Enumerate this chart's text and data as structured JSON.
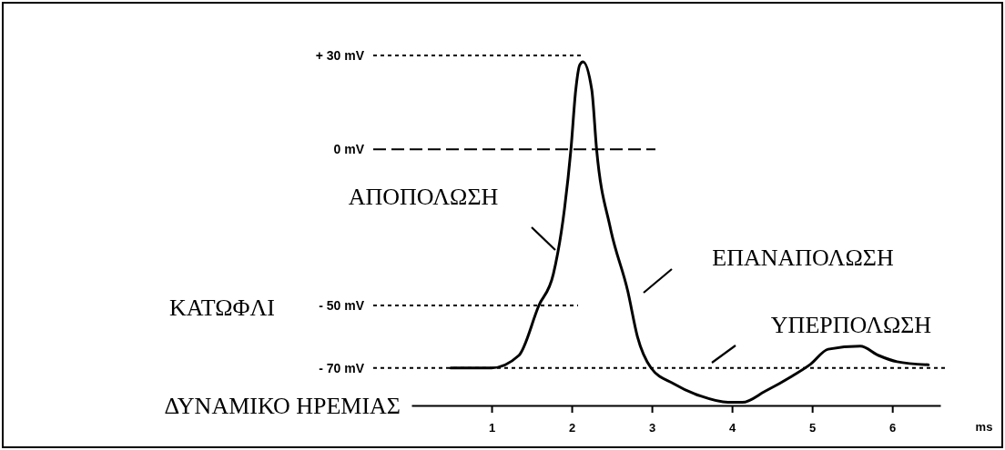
{
  "chart_data": {
    "type": "line",
    "xlabel": "ms",
    "xlim": [
      0,
      6.6
    ],
    "xticks": [
      1,
      2,
      3,
      4,
      5,
      6
    ],
    "ylim": [
      -82,
      30
    ],
    "yticks": [
      {
        "value": -70,
        "label": "- 70 mV"
      },
      {
        "value": -50,
        "label": "- 50 mV"
      },
      {
        "value": 0,
        "label": "0 mV"
      },
      {
        "value": 30,
        "label": "+ 30 mV"
      }
    ],
    "marker": "none",
    "line_style": "solid",
    "series": [
      {
        "color": "#000000",
        "x": [
          0.49,
          1.0,
          1.34,
          1.59,
          1.77,
          1.91,
          1.99,
          2.05,
          2.1,
          2.14,
          2.25,
          2.31,
          2.48,
          2.7,
          2.82,
          2.99,
          3.27,
          3.61,
          3.95,
          4.13,
          4.41,
          4.75,
          4.98,
          5.2,
          5.6,
          5.83,
          6.06,
          6.45
        ],
        "values": [
          -70,
          -70,
          -66,
          -50,
          -40,
          -19,
          0,
          19,
          27,
          28,
          19,
          0,
          -25,
          -45.5,
          -60,
          -70,
          -75,
          -79,
          -81,
          -81,
          -77.5,
          -72.6,
          -68.8,
          -64,
          -63,
          -66,
          -68,
          -69
        ]
      }
    ],
    "ref_lines": [
      {
        "axis": "y",
        "value": 30,
        "line_style": "dotted"
      },
      {
        "axis": "y",
        "value": 0,
        "line_style": "dashed"
      },
      {
        "axis": "y",
        "value": -50,
        "line_style": "dotted"
      },
      {
        "axis": "y",
        "value": -70,
        "line_style": "dotted"
      }
    ],
    "annotations": [
      "ΑΠΟΠΟΛΩΣΗ",
      "ΕΠΑΝΑΠΟΛΩΣΗ",
      "ΥΠΕΡΠΟΛΩΣΗ",
      "ΚΑΤΩΦΛΙ",
      "ΔΥΝΑΜΙΚΟ ΗΡΕΜΙΑΣ"
    ]
  }
}
